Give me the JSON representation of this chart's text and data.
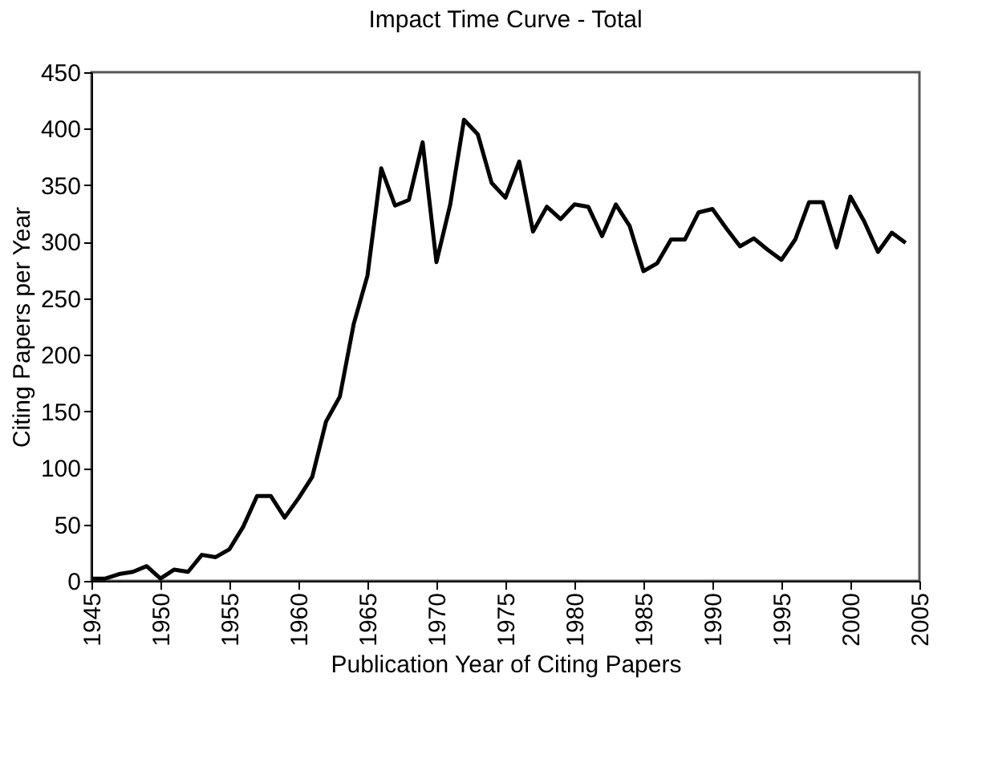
{
  "chart_data": {
    "type": "line",
    "title": "Impact Time Curve - Total",
    "xlabel": "Publication Year of Citing Papers",
    "ylabel": "Citing Papers per Year",
    "x": [
      1945,
      1946,
      1947,
      1948,
      1949,
      1950,
      1951,
      1952,
      1953,
      1954,
      1955,
      1956,
      1957,
      1958,
      1959,
      1960,
      1961,
      1962,
      1963,
      1964,
      1965,
      1966,
      1967,
      1968,
      1969,
      1970,
      1971,
      1972,
      1973,
      1974,
      1975,
      1976,
      1977,
      1978,
      1979,
      1980,
      1981,
      1982,
      1983,
      1984,
      1985,
      1986,
      1987,
      1988,
      1989,
      1990,
      1991,
      1992,
      1993,
      1994,
      1995,
      1996,
      1997,
      1998,
      1999,
      2000,
      2001,
      2002,
      2003,
      2004
    ],
    "series": [
      {
        "color": "#000000",
        "values": [
          2,
          2,
          6,
          8,
          13,
          2,
          10,
          8,
          23,
          21,
          28,
          48,
          75,
          75,
          56,
          73,
          92,
          141,
          163,
          227,
          270,
          365,
          332,
          337,
          388,
          282,
          333,
          408,
          395,
          352,
          339,
          371,
          309,
          331,
          320,
          333,
          331,
          305,
          333,
          314,
          274,
          281,
          302,
          302,
          326,
          329,
          312,
          296,
          303,
          293,
          284,
          302,
          335,
          335,
          295,
          340,
          318,
          291,
          308,
          299
        ]
      }
    ],
    "xlim": [
      1945,
      2005
    ],
    "xticks": [
      1945,
      1950,
      1955,
      1960,
      1965,
      1970,
      1975,
      1980,
      1985,
      1990,
      1995,
      2000,
      2005
    ],
    "ylim": [
      0,
      450
    ],
    "yticks": [
      0,
      50,
      100,
      150,
      200,
      250,
      300,
      350,
      400,
      450
    ],
    "grid": false,
    "legend": false,
    "marker": "none",
    "line_style": "solid"
  }
}
